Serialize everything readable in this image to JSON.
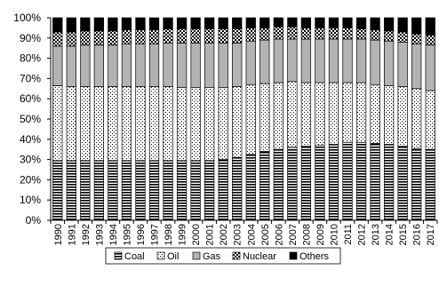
{
  "chart_data": {
    "type": "bar",
    "stacked": true,
    "categories": [
      "1990",
      "1991",
      "1992",
      "1993",
      "1994",
      "1995",
      "1996",
      "1997",
      "1998",
      "1999",
      "2000",
      "2001",
      "2002",
      "2003",
      "2004",
      "2005",
      "2006",
      "2007",
      "2008",
      "2009",
      "2010",
      "2011",
      "2012",
      "2013",
      "2014",
      "2015",
      "2016",
      "2017"
    ],
    "series": [
      {
        "name": "Coal",
        "color": "#000000",
        "values": [
          29.5,
          29.5,
          29.5,
          29.5,
          29.5,
          29.5,
          29.5,
          29.5,
          29.5,
          29.5,
          29.5,
          29.5,
          30.0,
          31.0,
          32.5,
          34.0,
          35.0,
          36.0,
          36.5,
          37.0,
          37.5,
          38.5,
          38.5,
          38.0,
          37.5,
          36.5,
          35.5,
          35.0
        ]
      },
      {
        "name": "Oil",
        "color": "#000000",
        "values": [
          37.0,
          36.5,
          36.5,
          36.5,
          36.5,
          36.5,
          36.5,
          36.5,
          36.5,
          36.0,
          36.0,
          36.0,
          35.5,
          35.0,
          34.5,
          33.5,
          33.0,
          32.5,
          31.5,
          31.0,
          30.5,
          29.5,
          29.5,
          29.0,
          29.0,
          29.5,
          29.5,
          29.0
        ]
      },
      {
        "name": "Gas",
        "color": "#b3b3b3",
        "values": [
          19.5,
          20.0,
          20.5,
          20.5,
          20.5,
          21.0,
          21.0,
          21.0,
          21.5,
          22.0,
          22.0,
          22.0,
          22.0,
          21.5,
          21.5,
          21.5,
          21.5,
          21.0,
          21.5,
          21.5,
          21.5,
          21.5,
          21.5,
          22.0,
          22.0,
          22.0,
          22.0,
          22.5
        ]
      },
      {
        "name": "Nuclear",
        "color": "#000000",
        "values": [
          7.0,
          7.0,
          7.0,
          7.0,
          7.0,
          7.0,
          7.0,
          7.0,
          7.0,
          7.0,
          7.0,
          7.0,
          7.0,
          7.0,
          6.5,
          6.0,
          6.0,
          6.0,
          5.5,
          5.5,
          5.5,
          5.5,
          5.0,
          5.0,
          5.0,
          5.0,
          5.0,
          5.0
        ]
      },
      {
        "name": "Others",
        "color": "#000000",
        "values": [
          7.0,
          7.0,
          6.5,
          6.5,
          6.5,
          6.0,
          6.0,
          6.0,
          5.5,
          5.5,
          5.5,
          5.5,
          5.5,
          5.5,
          5.0,
          5.0,
          4.5,
          4.5,
          5.0,
          5.0,
          5.0,
          5.0,
          5.5,
          6.0,
          6.5,
          7.0,
          8.0,
          8.5
        ]
      }
    ],
    "yticks": [
      "0%",
      "10%",
      "20%",
      "30%",
      "40%",
      "50%",
      "60%",
      "70%",
      "80%",
      "90%",
      "100%"
    ],
    "ylim": [
      0,
      100
    ],
    "grid": false,
    "legend": "bottom"
  }
}
